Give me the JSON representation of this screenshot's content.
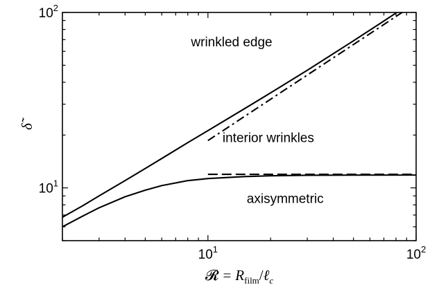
{
  "chart_data": {
    "type": "line",
    "title": "",
    "xlabel": "𝓡 = R_film/ℓ_c",
    "xlabel_parts": {
      "lhs": "𝓡",
      "eq": "=",
      "R": "R",
      "film": "film",
      "slash": "/",
      "ell": "ℓ",
      "c": "c"
    },
    "ylabel": "δ̃",
    "xscale": "log",
    "yscale": "log",
    "xlim": [
      2,
      100
    ],
    "ylim": [
      5,
      100
    ],
    "grid": false,
    "x_ticks": [
      {
        "value": 10,
        "base": "10",
        "exp": "1"
      },
      {
        "value": 100,
        "base": "10",
        "exp": "2"
      }
    ],
    "y_ticks": [
      {
        "value": 10,
        "base": "10",
        "exp": "1"
      },
      {
        "value": 100,
        "base": "10",
        "exp": "2"
      }
    ],
    "region_labels": [
      {
        "text": "wrinkled edge",
        "x": 13,
        "y": 64
      },
      {
        "text": "interior wrinkles",
        "x": 19.5,
        "y": 18.2
      },
      {
        "text": "axisymmetric",
        "x": 23.5,
        "y": 8.2
      }
    ],
    "series": [
      {
        "style": "solid",
        "x": [
          2,
          2.5,
          3,
          4,
          5,
          6,
          8,
          10,
          15,
          20,
          30,
          40,
          50,
          60,
          70,
          80,
          90
        ],
        "y": [
          6.8,
          7.9,
          9.0,
          11.0,
          12.9,
          14.7,
          18.1,
          21.2,
          28.3,
          34.8,
          46.8,
          58.2,
          68.9,
          79.3,
          89.4,
          99.2,
          108.9
        ]
      },
      {
        "style": "solid",
        "x": [
          2,
          2.5,
          3,
          4,
          5,
          6,
          8,
          10,
          15,
          20,
          30,
          50,
          100
        ],
        "y": [
          6.0,
          6.9,
          7.7,
          8.9,
          9.7,
          10.3,
          11.0,
          11.3,
          11.6,
          11.72,
          11.8,
          11.82,
          11.83
        ]
      },
      {
        "style": "dashdot",
        "x": [
          10,
          90
        ],
        "y": [
          18.6,
          104
        ]
      },
      {
        "style": "dashed",
        "x": [
          10,
          100
        ],
        "y": [
          11.95,
          11.95
        ]
      }
    ]
  }
}
